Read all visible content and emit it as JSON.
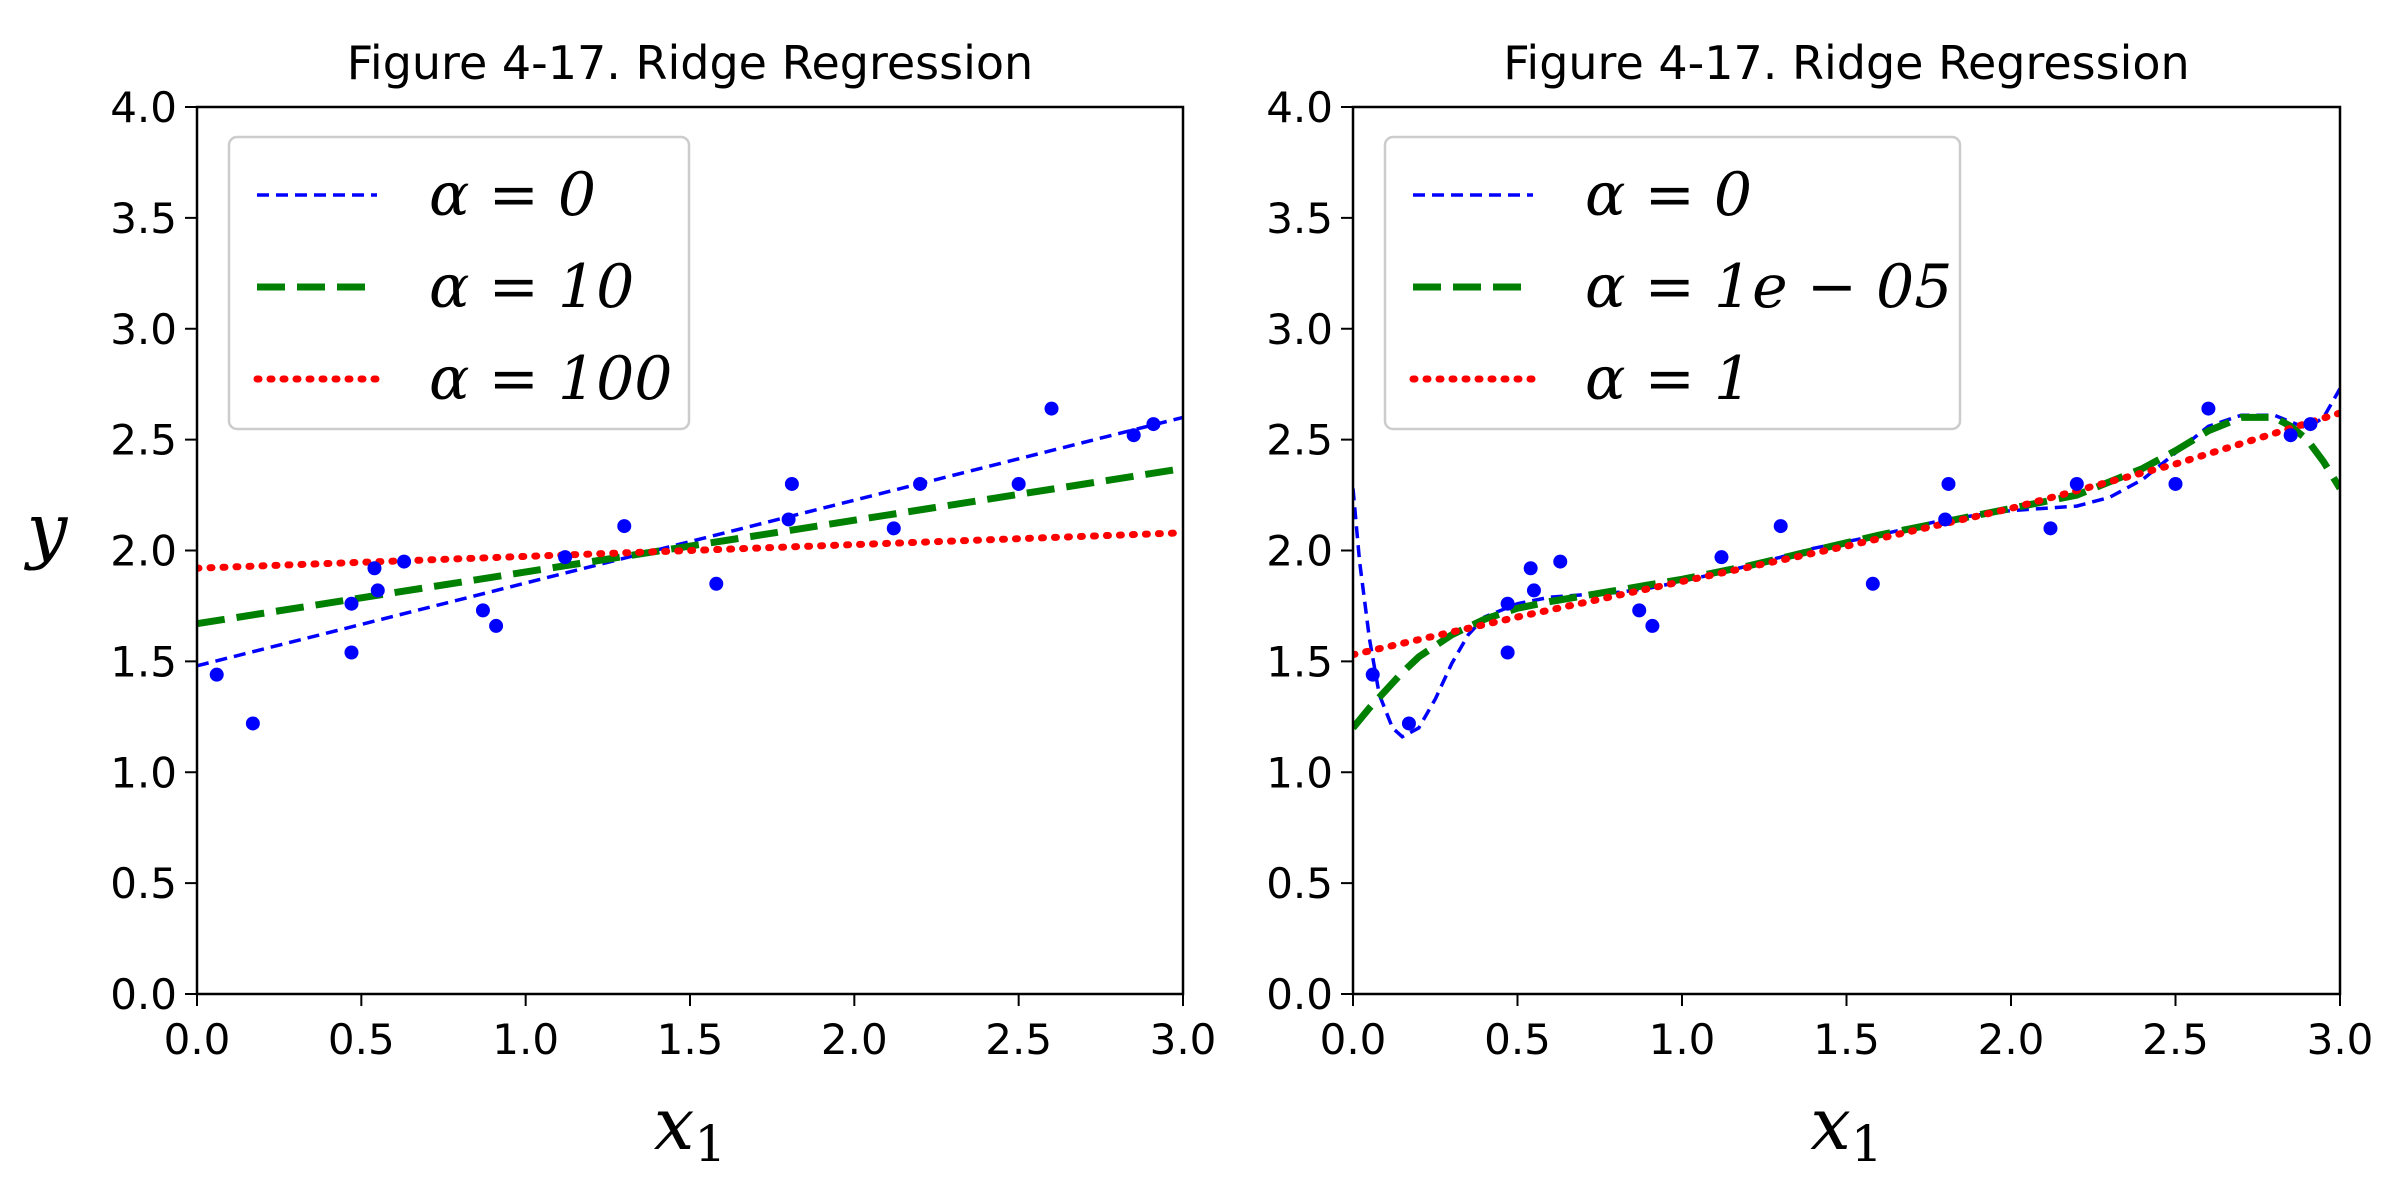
{
  "chart_data": [
    {
      "type": "scatter",
      "title": "Figure 4-17. Ridge Regression",
      "xlabel": "x",
      "xlabel_sub": "1",
      "ylabel": "y",
      "xlim": [
        0,
        3
      ],
      "ylim": [
        0,
        4
      ],
      "xticks": [
        "0.0",
        "0.5",
        "1.0",
        "1.5",
        "2.0",
        "2.5",
        "3.0"
      ],
      "yticks": [
        "0.0",
        "0.5",
        "1.0",
        "1.5",
        "2.0",
        "2.5",
        "3.0",
        "3.5",
        "4.0"
      ],
      "legend_position": "upper-left",
      "points": {
        "color": "#0000ff",
        "x": [
          0.06,
          0.17,
          0.47,
          0.47,
          0.54,
          0.55,
          0.63,
          0.87,
          0.91,
          1.12,
          1.3,
          1.58,
          1.8,
          1.81,
          2.12,
          2.2,
          2.5,
          2.6,
          2.85,
          2.91
        ],
        "y": [
          1.44,
          1.22,
          1.76,
          1.54,
          1.92,
          1.82,
          1.95,
          1.73,
          1.66,
          1.97,
          2.11,
          1.85,
          2.14,
          2.3,
          2.1,
          2.3,
          2.3,
          2.64,
          2.52,
          2.57
        ]
      },
      "series": [
        {
          "name": "α = 0",
          "color": "#0000ff",
          "style": "short-dash",
          "x": [
            0,
            3
          ],
          "y": [
            1.48,
            2.6
          ]
        },
        {
          "name": "α = 10",
          "color": "#008000",
          "style": "long-dash",
          "x": [
            0,
            3
          ],
          "y": [
            1.67,
            2.37
          ]
        },
        {
          "name": "α = 100",
          "color": "#ff0000",
          "style": "dotted",
          "x": [
            0,
            3
          ],
          "y": [
            1.92,
            2.08
          ]
        }
      ]
    },
    {
      "type": "scatter",
      "title": "Figure 4-17. Ridge Regression",
      "xlabel": "x",
      "xlabel_sub": "1",
      "ylabel": "",
      "xlim": [
        0,
        3
      ],
      "ylim": [
        0,
        4
      ],
      "xticks": [
        "0.0",
        "0.5",
        "1.0",
        "1.5",
        "2.0",
        "2.5",
        "3.0"
      ],
      "yticks": [
        "0.0",
        "0.5",
        "1.0",
        "1.5",
        "2.0",
        "2.5",
        "3.0",
        "3.5",
        "4.0"
      ],
      "legend_position": "upper-left",
      "points": {
        "color": "#0000ff",
        "x": [
          0.06,
          0.17,
          0.47,
          0.47,
          0.54,
          0.55,
          0.63,
          0.87,
          0.91,
          1.12,
          1.3,
          1.58,
          1.8,
          1.81,
          2.12,
          2.2,
          2.5,
          2.6,
          2.85,
          2.91
        ],
        "y": [
          1.44,
          1.22,
          1.76,
          1.54,
          1.92,
          1.82,
          1.95,
          1.73,
          1.66,
          1.97,
          2.11,
          1.85,
          2.14,
          2.3,
          2.1,
          2.3,
          2.3,
          2.64,
          2.52,
          2.57
        ]
      },
      "series": [
        {
          "name": "α = 0",
          "color": "#0000ff",
          "style": "short-dash",
          "x": [
            0,
            0.02,
            0.05,
            0.08,
            0.12,
            0.15,
            0.2,
            0.25,
            0.3,
            0.35,
            0.4,
            0.5,
            0.6,
            0.7,
            0.8,
            0.9,
            1.0,
            1.2,
            1.4,
            1.6,
            1.8,
            2.0,
            2.2,
            2.3,
            2.4,
            2.5,
            2.6,
            2.7,
            2.8,
            2.9,
            2.95,
            3.0
          ],
          "y": [
            2.28,
            1.95,
            1.6,
            1.35,
            1.2,
            1.16,
            1.2,
            1.33,
            1.49,
            1.62,
            1.7,
            1.76,
            1.79,
            1.8,
            1.81,
            1.83,
            1.86,
            1.93,
            2.01,
            2.07,
            2.14,
            2.18,
            2.2,
            2.24,
            2.32,
            2.44,
            2.56,
            2.61,
            2.61,
            2.55,
            2.6,
            2.73
          ]
        },
        {
          "name": "α = 1e − 05",
          "color": "#008000",
          "style": "long-dash",
          "x": [
            0,
            0.05,
            0.1,
            0.15,
            0.2,
            0.3,
            0.4,
            0.5,
            0.6,
            0.8,
            1.0,
            1.2,
            1.4,
            1.6,
            1.8,
            2.0,
            2.2,
            2.4,
            2.5,
            2.6,
            2.7,
            2.8,
            2.85,
            2.9,
            2.95,
            3.0
          ],
          "y": [
            1.2,
            1.29,
            1.37,
            1.45,
            1.52,
            1.62,
            1.69,
            1.74,
            1.77,
            1.82,
            1.87,
            1.93,
            2.0,
            2.07,
            2.13,
            2.19,
            2.25,
            2.37,
            2.45,
            2.54,
            2.6,
            2.6,
            2.56,
            2.5,
            2.4,
            2.28
          ]
        },
        {
          "name": "α = 1",
          "color": "#ff0000",
          "style": "dotted",
          "x": [
            0,
            0.5,
            1.0,
            1.5,
            2.0,
            2.5,
            3.0
          ],
          "y": [
            1.53,
            1.7,
            1.86,
            2.02,
            2.19,
            2.39,
            2.62
          ]
        }
      ]
    }
  ]
}
